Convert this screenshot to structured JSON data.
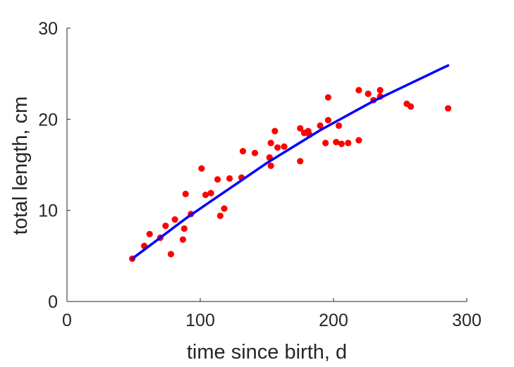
{
  "chart_data": {
    "type": "scatter",
    "title": "",
    "xlabel": "time since birth, d",
    "ylabel": "total length, cm",
    "xlim": [
      0,
      300
    ],
    "ylim": [
      0,
      30
    ],
    "xticks": [
      "0",
      "100",
      "200",
      "300"
    ],
    "yticks": [
      "0",
      "10",
      "20",
      "30"
    ],
    "grid": false,
    "colors": {
      "points": "#ff0000",
      "fit": "#0000ff",
      "axes": "#262626"
    },
    "series": [
      {
        "type": "scatter",
        "points": [
          [
            49,
            4.7
          ],
          [
            58,
            6.1
          ],
          [
            62,
            7.4
          ],
          [
            70,
            7.0
          ],
          [
            74,
            8.3
          ],
          [
            78,
            5.2
          ],
          [
            81,
            9.0
          ],
          [
            87,
            6.8
          ],
          [
            88,
            8.0
          ],
          [
            89,
            11.8
          ],
          [
            93,
            9.6
          ],
          [
            101,
            14.6
          ],
          [
            104,
            11.7
          ],
          [
            108,
            11.9
          ],
          [
            113,
            13.4
          ],
          [
            115,
            9.4
          ],
          [
            118,
            10.2
          ],
          [
            122,
            13.5
          ],
          [
            131,
            13.6
          ],
          [
            132,
            16.5
          ],
          [
            141,
            16.3
          ],
          [
            152,
            15.8
          ],
          [
            153,
            14.9
          ],
          [
            153,
            17.4
          ],
          [
            156,
            18.7
          ],
          [
            158,
            16.9
          ],
          [
            163,
            17.0
          ],
          [
            175,
            15.4
          ],
          [
            175,
            19.0
          ],
          [
            178,
            18.5
          ],
          [
            181,
            18.7
          ],
          [
            182,
            18.3
          ],
          [
            190,
            19.3
          ],
          [
            194,
            17.4
          ],
          [
            196,
            22.4
          ],
          [
            196,
            19.9
          ],
          [
            202,
            17.5
          ],
          [
            204,
            19.3
          ],
          [
            206,
            17.3
          ],
          [
            211,
            17.4
          ],
          [
            219,
            23.2
          ],
          [
            219,
            17.7
          ],
          [
            226,
            22.8
          ],
          [
            230,
            22.1
          ],
          [
            235,
            22.5
          ],
          [
            235,
            23.2
          ],
          [
            255,
            21.7
          ],
          [
            258,
            21.4
          ],
          [
            286,
            21.2
          ]
        ]
      },
      {
        "type": "line",
        "points": [
          [
            49,
            4.7
          ],
          [
            60,
            5.9
          ],
          [
            70,
            7.0
          ],
          [
            80,
            8.1
          ],
          [
            90,
            9.2
          ],
          [
            100,
            10.2
          ],
          [
            110,
            11.2
          ],
          [
            120,
            12.2
          ],
          [
            130,
            13.2
          ],
          [
            140,
            14.2
          ],
          [
            150,
            15.2
          ],
          [
            160,
            16.1
          ],
          [
            170,
            17.0
          ],
          [
            180,
            17.9
          ],
          [
            190,
            18.8
          ],
          [
            200,
            19.6
          ],
          [
            210,
            20.4
          ],
          [
            220,
            21.2
          ],
          [
            230,
            22.0
          ],
          [
            240,
            22.7
          ],
          [
            250,
            23.4
          ],
          [
            260,
            24.1
          ],
          [
            270,
            24.8
          ],
          [
            280,
            25.5
          ],
          [
            286,
            25.9
          ]
        ]
      }
    ]
  }
}
